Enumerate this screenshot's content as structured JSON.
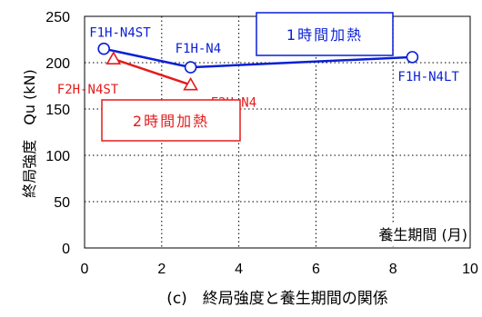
{
  "chart_data": {
    "type": "scatter",
    "xlim": [
      0,
      10
    ],
    "ylim": [
      0,
      250
    ],
    "xticks": [
      "0",
      "2",
      "4",
      "6",
      "8",
      "10"
    ],
    "yticks": [
      "0",
      "50",
      "100",
      "150",
      "200",
      "250"
    ],
    "ylabel": "終局強度　Qu (kN)",
    "xlabel": "養生期間 (月)",
    "caption": "(c)　終局強度と養生期間の関係",
    "series": [
      {
        "name": "1時間加熱",
        "color": "#0a1fd6",
        "marker": "circle",
        "points": [
          {
            "x": 0.5,
            "y": 215,
            "label": "F1H-N4ST"
          },
          {
            "x": 2.75,
            "y": 195,
            "label": "F1H-N4"
          },
          {
            "x": 8.5,
            "y": 206,
            "label": "F1H-N4LT"
          }
        ]
      },
      {
        "name": "2時間加熱",
        "color": "#e41b1b",
        "marker": "triangle",
        "points": [
          {
            "x": 0.75,
            "y": 204,
            "label": "F2H-N4ST"
          },
          {
            "x": 2.75,
            "y": 176,
            "label": "F2H-N4"
          }
        ]
      }
    ]
  }
}
